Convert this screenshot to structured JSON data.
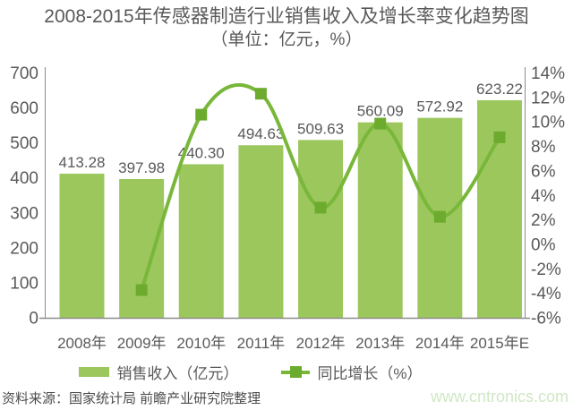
{
  "title": {
    "line1": "2008-2015年传感器制造行业销售收入及增长率变化趋势图",
    "line2": "（单位：亿元，%）"
  },
  "chart_data": {
    "type": "bar",
    "subtype": "combo-bar-line",
    "categories": [
      "2008年",
      "2009年",
      "2010年",
      "2011年",
      "2012年",
      "2013年",
      "2014年",
      "2015年E"
    ],
    "series": [
      {
        "name": "销售收入（亿元）",
        "type": "bar",
        "axis": "left",
        "values": [
          413.28,
          397.98,
          440.3,
          494.63,
          509.63,
          560.09,
          572.92,
          623.22
        ],
        "labels": [
          "413.28",
          "397.98",
          "440.30",
          "494.63",
          "509.63",
          "560.09",
          "572.92",
          "623.22"
        ]
      },
      {
        "name": "同比增长（%）",
        "type": "line",
        "axis": "right",
        "values": [
          null,
          -3.7,
          10.63,
          12.34,
          3.03,
          9.9,
          2.29,
          8.78
        ]
      }
    ],
    "left_axis": {
      "min": 0,
      "max": 700,
      "step": 100,
      "tick_labels": [
        "0",
        "100",
        "200",
        "300",
        "400",
        "500",
        "600",
        "700"
      ]
    },
    "right_axis": {
      "min": -6,
      "max": 14,
      "step": 2,
      "tick_labels": [
        "-6%",
        "-4%",
        "-2%",
        "0%",
        "2%",
        "4%",
        "6%",
        "8%",
        "10%",
        "12%",
        "14%"
      ]
    },
    "grid": false,
    "legend_position": "bottom"
  },
  "legend": {
    "items": [
      {
        "label": "销售收入（亿元）"
      },
      {
        "label": "同比增长（%）"
      }
    ]
  },
  "footer": {
    "source": "资料来源：国家统计局 前瞻产业研究院整理",
    "watermark": "www.cntronics.com"
  },
  "colors": {
    "bar": "#9CC75D",
    "line": "#79B73A",
    "marker": "#6CAB2E",
    "axis": "#8C8C8C",
    "text": "#595959",
    "source_text": "#4C4C4C",
    "watermark": "#CFE8C5"
  }
}
